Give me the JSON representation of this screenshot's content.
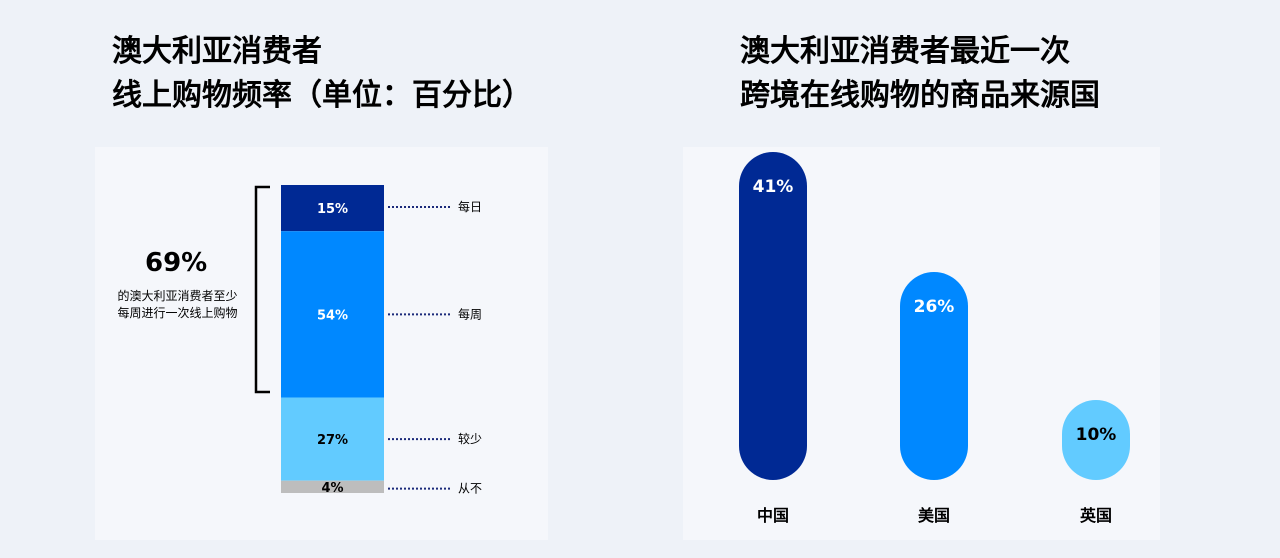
{
  "chart_data": [
    {
      "type": "bar",
      "stacked": true,
      "title_lines": [
        "澳大利亚消费者",
        "线上购物频率（单位：百分比）"
      ],
      "categories": [
        "每日",
        "每周",
        "较少",
        "从不"
      ],
      "values": [
        15,
        54,
        27,
        4
      ],
      "labels": [
        "15%",
        "54%",
        "27%",
        "4%"
      ],
      "colors": [
        "#002994",
        "#0088ff",
        "#62cbff",
        "#bdbdbd"
      ],
      "label_colors": [
        "#ffffff",
        "#ffffff",
        "#000000",
        "#000000"
      ],
      "annotation": {
        "value": "69%",
        "lines": [
          "的澳大利亚消费者至少",
          "每周进行一次线上购物"
        ]
      }
    },
    {
      "type": "bar",
      "title_lines": [
        "澳大利亚消费者最近一次",
        "跨境在线购物的商品来源国"
      ],
      "categories": [
        "中国",
        "美国",
        "英国"
      ],
      "values": [
        41,
        26,
        10
      ],
      "labels": [
        "41%",
        "26%",
        "10%"
      ],
      "colors": [
        "#002994",
        "#0088ff",
        "#62cbff"
      ],
      "label_colors": [
        "#ffffff",
        "#ffffff",
        "#000000"
      ]
    }
  ]
}
